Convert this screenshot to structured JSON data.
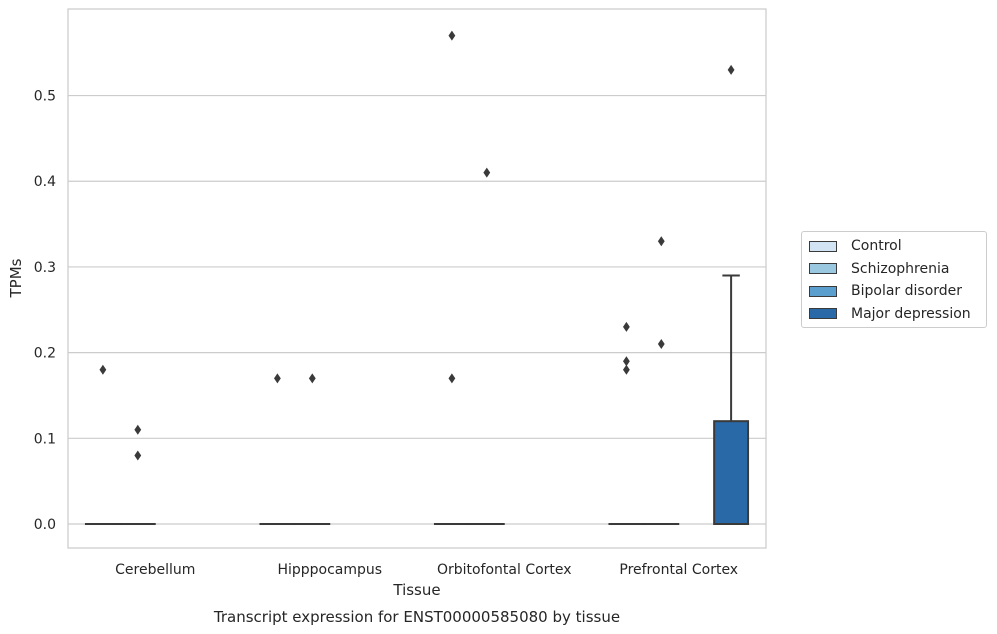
{
  "chart_data": {
    "type": "box",
    "title": "Transcript expression for ENST00000585080 by tissue",
    "xlabel": "Tissue",
    "ylabel": "TPMs",
    "ylim": [
      -0.028,
      0.601
    ],
    "yticks": [
      0.0,
      0.1,
      0.2,
      0.3,
      0.4,
      0.5
    ],
    "ytick_labels": [
      "0.0",
      "0.1",
      "0.2",
      "0.3",
      "0.4",
      "0.5"
    ],
    "grid": "horizontal",
    "legend_position": "right",
    "categories": [
      "Cerebellum",
      "Hipppocampus",
      "Orbitofontal Cortex",
      "Prefrontal Cortex"
    ],
    "series": [
      {
        "name": "Control",
        "color": "#d2e3f3",
        "boxes": [
          {
            "q1": 0,
            "median": 0,
            "q3": 0,
            "whisker_low": 0,
            "whisker_high": 0,
            "outliers": [
              0.18
            ]
          },
          {
            "q1": 0,
            "median": 0,
            "q3": 0,
            "whisker_low": 0,
            "whisker_high": 0,
            "outliers": [
              0.17
            ]
          },
          {
            "q1": 0,
            "median": 0,
            "q3": 0,
            "whisker_low": 0,
            "whisker_high": 0,
            "outliers": [
              0.57,
              0.17
            ]
          },
          {
            "q1": 0,
            "median": 0,
            "q3": 0,
            "whisker_low": 0,
            "whisker_high": 0,
            "outliers": [
              0.23,
              0.19,
              0.18
            ]
          }
        ]
      },
      {
        "name": "Schizophrenia",
        "color": "#9ac8e0",
        "boxes": [
          {
            "q1": 0,
            "median": 0,
            "q3": 0,
            "whisker_low": 0,
            "whisker_high": 0,
            "outliers": [
              0.11,
              0.08
            ]
          },
          {
            "q1": 0,
            "median": 0,
            "q3": 0,
            "whisker_low": 0,
            "whisker_high": 0,
            "outliers": [
              0.17
            ]
          },
          {
            "q1": 0,
            "median": 0,
            "q3": 0,
            "whisker_low": 0,
            "whisker_high": 0,
            "outliers": [
              0.41
            ]
          },
          {
            "q1": 0,
            "median": 0,
            "q3": 0,
            "whisker_low": 0,
            "whisker_high": 0,
            "outliers": [
              0.33,
              0.21
            ]
          }
        ]
      },
      {
        "name": "Bipolar disorder",
        "color": "#5a9fcd",
        "boxes": [
          null,
          null,
          null,
          null
        ]
      },
      {
        "name": "Major depression",
        "color": "#2a69a8",
        "boxes": [
          null,
          null,
          null,
          {
            "q1": 0,
            "median": 0,
            "q3": 0.12,
            "whisker_low": 0,
            "whisker_high": 0.29,
            "outliers": [
              0.53
            ]
          }
        ]
      }
    ]
  }
}
